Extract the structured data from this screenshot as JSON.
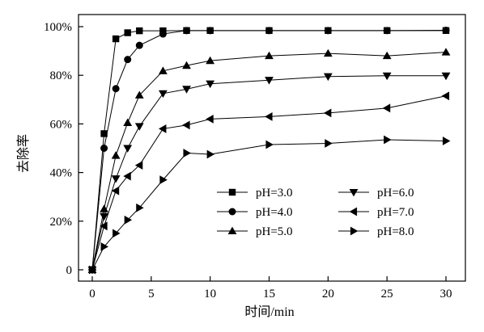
{
  "chart_data": {
    "type": "line",
    "title": "",
    "xlabel": "时间/min",
    "ylabel": "去除率",
    "xlim": [
      0,
      30
    ],
    "ylim": [
      0,
      100
    ],
    "x_ticks": [
      0,
      5,
      10,
      15,
      20,
      25,
      30
    ],
    "y_ticks": [
      0,
      20,
      40,
      60,
      80,
      100
    ],
    "x_tick_labels": [
      "0",
      "5",
      "10",
      "15",
      "20",
      "25",
      "30"
    ],
    "y_tick_labels": [
      "0",
      "20%",
      "40%",
      "60%",
      "80%",
      "100%"
    ],
    "grid": false,
    "legend_position": "bottom-center",
    "line_color": "#000000",
    "x": [
      0,
      1,
      2,
      3,
      4,
      6,
      8,
      10,
      15,
      20,
      25,
      30
    ],
    "series": [
      {
        "name": "pH=3.0",
        "marker": "square",
        "values": [
          0,
          56,
          95,
          97.5,
          98.3,
          98.3,
          98.4,
          98.4,
          98.4,
          98.4,
          98.4,
          98.4
        ]
      },
      {
        "name": "pH=4.0",
        "marker": "circle",
        "values": [
          0,
          50,
          74.5,
          86.5,
          92.3,
          97,
          98.4,
          98.4,
          98.4,
          98.4,
          98.4,
          98.5
        ]
      },
      {
        "name": "pH=5.0",
        "marker": "triangle-up",
        "values": [
          0,
          25,
          47,
          60.5,
          71.8,
          81.8,
          84,
          86,
          88,
          89,
          88,
          89.5
        ]
      },
      {
        "name": "pH=6.0",
        "marker": "triangle-down",
        "values": [
          0,
          22,
          37.5,
          50,
          59,
          72.5,
          74.3,
          76.5,
          78,
          79.5,
          79.8,
          79.8
        ]
      },
      {
        "name": "pH=7.0",
        "marker": "triangle-left",
        "values": [
          0,
          18,
          32.5,
          38.5,
          43,
          58,
          59.5,
          62,
          63,
          64.5,
          66.5,
          71.5
        ]
      },
      {
        "name": "pH=8.0",
        "marker": "triangle-right",
        "values": [
          0,
          9.5,
          15,
          20.5,
          25.5,
          37,
          48,
          47.5,
          51.5,
          52,
          53.5,
          53
        ]
      }
    ]
  }
}
